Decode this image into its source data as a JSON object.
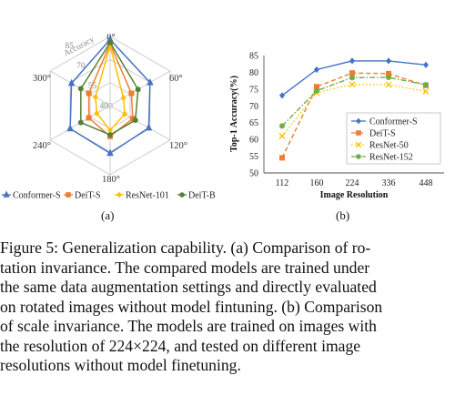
{
  "figure_a": {
    "label": "(a)",
    "chart_data": {
      "type": "radar",
      "axis_title": "Accuracy",
      "angle_labels": [
        "0°",
        "60°",
        "120°",
        "180°",
        "240°",
        "300°"
      ],
      "rings": [
        40,
        55,
        70,
        85
      ],
      "ring_labels_shown": [
        "40",
        "55",
        "70",
        "85"
      ],
      "range": [
        40,
        85
      ],
      "series": [
        {
          "name": "Conformer-S",
          "color": "#4472c4",
          "marker": "triangle",
          "values": [
            83,
            70,
            69,
            71,
            70,
            69
          ]
        },
        {
          "name": "DeiT-S",
          "color": "#ed7d31",
          "marker": "square",
          "values": [
            80,
            56,
            57,
            60,
            56,
            56
          ]
        },
        {
          "name": "ResNet-101",
          "color": "#ffc000",
          "marker": "diamond",
          "values": [
            79,
            50,
            51,
            56,
            50,
            51
          ]
        },
        {
          "name": "DeiT-B",
          "color": "#548235",
          "marker": "circle",
          "values": [
            81,
            61,
            59,
            59,
            62,
            62
          ]
        }
      ],
      "legend_position": "bottom"
    }
  },
  "figure_b": {
    "label": "(b)",
    "chart_data": {
      "type": "line",
      "xlabel": "Image  Resolution",
      "ylabel": "Top-1 Accuracy(%)",
      "x": [
        "112",
        "160",
        "224",
        "336",
        "448"
      ],
      "ylim": [
        50,
        85
      ],
      "yticks": [
        50,
        55,
        60,
        65,
        70,
        75,
        80,
        85
      ],
      "series": [
        {
          "name": "Conformer-S",
          "color": "#4472c4",
          "style": "solid",
          "marker": "diamond",
          "values": [
            73.1,
            80.8,
            83.4,
            83.4,
            82.2
          ]
        },
        {
          "name": "DeiT-S",
          "color": "#ed7d31",
          "style": "dashed",
          "marker": "square",
          "values": [
            54.5,
            75.7,
            79.8,
            79.6,
            76.1
          ]
        },
        {
          "name": "ResNet-50",
          "color": "#ffc000",
          "style": "dotted",
          "marker": "x",
          "values": [
            61.0,
            73.9,
            76.4,
            76.3,
            74.3
          ]
        },
        {
          "name": "ResNet-152",
          "color": "#70ad47",
          "style": "dashdot",
          "marker": "circle",
          "values": [
            64.0,
            74.5,
            78.4,
            78.5,
            76.3
          ]
        }
      ],
      "legend_position": "right"
    }
  },
  "caption": {
    "lines": [
      "Figure 5: Generalization capability. (a) Comparison of ro-",
      "tation invariance.  The compared models are trained under",
      "the same data augmentation settings and directly evaluated",
      "on rotated images without model fintuning. (b) Comparison",
      "of scale invariance. The models are trained on images with",
      "the resolution of 224×224, and tested on different image",
      "resolutions without model finetuning."
    ]
  }
}
